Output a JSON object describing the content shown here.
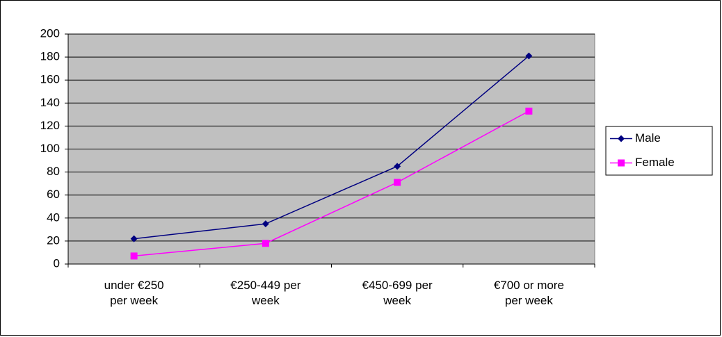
{
  "chart_data": {
    "type": "line",
    "categories": [
      "under €250\nper week",
      "€250-449 per\nweek",
      "€450-699 per\nweek",
      "€700 or more\nper week"
    ],
    "series": [
      {
        "name": "Male",
        "color": "#000080",
        "marker": "diamond",
        "values": [
          22,
          35,
          85,
          181
        ]
      },
      {
        "name": "Female",
        "color": "#ff00ff",
        "marker": "square",
        "values": [
          7,
          18,
          71,
          133
        ]
      }
    ],
    "ylim": [
      0,
      200
    ],
    "yticks": [
      0,
      20,
      40,
      60,
      80,
      100,
      120,
      140,
      160,
      180,
      200
    ],
    "grid": true,
    "legend": "right",
    "plot_background": "#c0c0c0"
  }
}
